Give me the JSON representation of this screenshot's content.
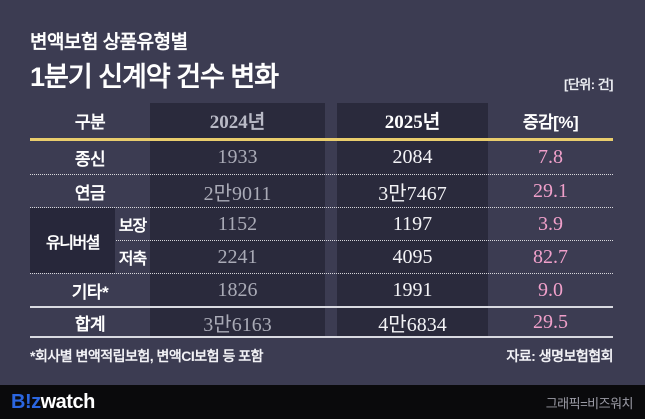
{
  "title": {
    "line1": "변액보험 상품유형별",
    "line2": "1분기 신계약 건수 변화",
    "unit": "[단위: 건]"
  },
  "table": {
    "headers": {
      "category": "구분",
      "y2024": "2024년",
      "y2025": "2025년",
      "change": "증감[%]"
    },
    "group_label": "유니버셜",
    "rows": [
      {
        "label": "종신",
        "y2024": "1933",
        "y2025": "2084",
        "change": "7.8"
      },
      {
        "label": "연금",
        "y2024": "2만9011",
        "y2025": "3만7467",
        "change": "29.1"
      },
      {
        "label": "보장",
        "y2024": "1152",
        "y2025": "1197",
        "change": "3.9"
      },
      {
        "label": "저축",
        "y2024": "2241",
        "y2025": "4095",
        "change": "82.7"
      },
      {
        "label": "기타*",
        "y2024": "1826",
        "y2025": "1991",
        "change": "9.0"
      },
      {
        "label": "합계",
        "y2024": "3만6163",
        "y2025": "4만6834",
        "change": "29.5"
      }
    ],
    "footnote": "*회사별 변액적립보험, 변액CI보험 등 포함",
    "source": "자료: 생명보험협회"
  },
  "footer": {
    "logo_primary": "B!z",
    "logo_secondary": "watch",
    "credit": "그래픽=비즈워치"
  },
  "colors": {
    "page_bg": "#3c3c52",
    "band_bg": "#2a2a3c",
    "accent_yellow": "#e9cd6d",
    "accent_pink": "#f0a0ca",
    "muted_value": "#a9aab6",
    "white_value": "#f3f3f6",
    "footer_bg": "#0a0a0c",
    "logo_blue": "#2b66e0",
    "credit_gray": "#9b9ba5"
  },
  "chart_data": {
    "type": "table",
    "title": "변액보험 상품유형별 1분기 신계약 건수 변화",
    "unit": "건",
    "columns": [
      "구분",
      "2024년",
      "2025년",
      "증감[%]"
    ],
    "rows": [
      [
        "종신",
        1933,
        2084,
        7.8
      ],
      [
        "연금",
        29011,
        37467,
        29.1
      ],
      [
        "유니버셜 보장",
        1152,
        1197,
        3.9
      ],
      [
        "유니버셜 저축",
        2241,
        4095,
        82.7
      ],
      [
        "기타*",
        1826,
        1991,
        9.0
      ],
      [
        "합계",
        36163,
        46834,
        29.5
      ]
    ],
    "footnote": "*회사별 변액적립보험, 변액CI보험 등 포함",
    "source": "생명보험협회"
  }
}
